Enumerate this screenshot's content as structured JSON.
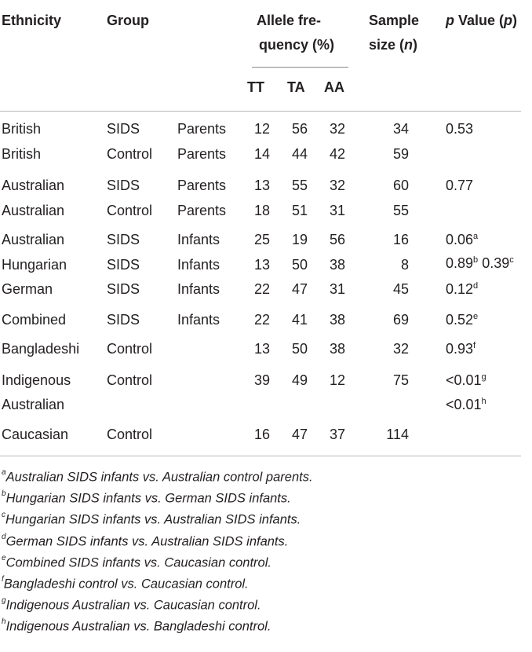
{
  "header": {
    "ethnicity": "Ethnicity",
    "group": "Group",
    "allele_line1": "Allele fre-",
    "allele_line2": "quency (%)",
    "sample_line1": "Sample",
    "sample_line2_a": "size (",
    "sample_line2_n": "n",
    "sample_line2_b": ")",
    "pvalue_p1": "p",
    "pvalue_mid": " Value (",
    "pvalue_p2": "p",
    "pvalue_end": ")",
    "tt": "TT",
    "ta": "TA",
    "aa": "AA"
  },
  "rows": [
    {
      "ethnicity": "British",
      "group": "SIDS",
      "sub": "Parents",
      "tt": "12",
      "ta": "56",
      "aa": "32",
      "n": "34"
    },
    {
      "ethnicity": "British",
      "group": "Control",
      "sub": "Parents",
      "tt": "14",
      "ta": "44",
      "aa": "42",
      "n": "59"
    },
    {
      "ethnicity": "Australian",
      "group": "SIDS",
      "sub": "Parents",
      "tt": "13",
      "ta": "55",
      "aa": "32",
      "n": "60"
    },
    {
      "ethnicity": "Australian",
      "group": "Control",
      "sub": "Parents",
      "tt": "18",
      "ta": "51",
      "aa": "31",
      "n": "55"
    },
    {
      "ethnicity": "Australian",
      "group": "SIDS",
      "sub": "Infants",
      "tt": "25",
      "ta": "19",
      "aa": "56",
      "n": "16"
    },
    {
      "ethnicity": "Hungarian",
      "group": "SIDS",
      "sub": "Infants",
      "tt": "13",
      "ta": "50",
      "aa": "38",
      "n": "8"
    },
    {
      "ethnicity": "German",
      "group": "SIDS",
      "sub": "Infants",
      "tt": "22",
      "ta": "47",
      "aa": "31",
      "n": "45"
    },
    {
      "ethnicity": "Combined",
      "group": "SIDS",
      "sub": "Infants",
      "tt": "22",
      "ta": "41",
      "aa": "38",
      "n": "69"
    },
    {
      "ethnicity": "Bangladeshi",
      "group": "Control",
      "sub": "",
      "tt": "13",
      "ta": "50",
      "aa": "38",
      "n": "32"
    },
    {
      "ethnicity": "Indigenous",
      "group": "Control",
      "sub": "",
      "tt": "39",
      "ta": "49",
      "aa": "12",
      "n": "75"
    },
    {
      "ethnicity": "Australian",
      "group": "",
      "sub": "",
      "tt": "",
      "ta": "",
      "aa": "",
      "n": ""
    },
    {
      "ethnicity": "Caucasian",
      "group": "Control",
      "sub": "",
      "tt": "16",
      "ta": "47",
      "aa": "37",
      "n": "114"
    }
  ],
  "pvalues": {
    "british": "0.53",
    "australian_parents": "0.77",
    "australian_infants": "0.06",
    "australian_infants_sup": "a",
    "hungarian_1": "0.89",
    "hungarian_1_sup": "b",
    "hungarian_2": "0.39",
    "hungarian_2_sup": "c",
    "german": "0.12",
    "german_sup": "d",
    "combined": "0.52",
    "combined_sup": "e",
    "bangladeshi": "0.93",
    "bangladeshi_sup": "f",
    "indigenous_1": "<0.01",
    "indigenous_1_sup": "g",
    "indigenous_2": "<0.01",
    "indigenous_2_sup": "h"
  },
  "footnotes": [
    {
      "mark": "a",
      "text": "Australian SIDS infants vs. Australian control parents."
    },
    {
      "mark": "b",
      "text": "Hungarian SIDS infants vs. German SIDS infants."
    },
    {
      "mark": "c",
      "text": "Hungarian SIDS infants vs. Australian SIDS infants."
    },
    {
      "mark": "d",
      "text": "German SIDS infants vs. Australian SIDS infants."
    },
    {
      "mark": "e",
      "text": "Combined SIDS infants vs. Caucasian control."
    },
    {
      "mark": "f",
      "text": "Bangladeshi control vs. Caucasian control."
    },
    {
      "mark": "g",
      "text": "Indigenous Australian vs. Caucasian control."
    },
    {
      "mark": "h",
      "text": "Indigenous Australian vs. Bangladeshi control."
    }
  ]
}
